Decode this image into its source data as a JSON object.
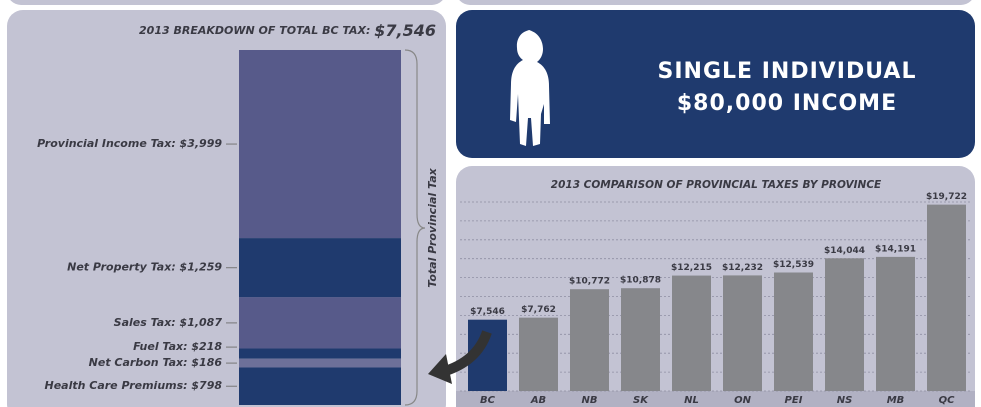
{
  "banner": {
    "line1": "SINGLE INDIVIDUAL",
    "line2": "$80,000 INCOME"
  },
  "chart_data": [
    {
      "type": "stacked_bar",
      "title": "2013 BREAKDOWN OF TOTAL BC TAX:",
      "total_label": "$7,546",
      "bracket_label": "Total Provincial Tax",
      "categories": [
        "Provincial Income Tax: $3,999",
        "Net Property Tax: $1,259",
        "Sales Tax: $1,087",
        "Fuel Tax: $218",
        "Net Carbon Tax: $186",
        "Health Care Premiums: $798"
      ],
      "values": [
        3999,
        1259,
        1087,
        218,
        186,
        798
      ],
      "colors": [
        "#575a8a",
        "#1f3a6e",
        "#575a8a",
        "#1f3a6e",
        "#6d7099",
        "#1f3a6e"
      ]
    },
    {
      "type": "bar",
      "title": "2013 COMPARISON OF PROVINCIAL TAXES BY PROVINCE",
      "categories": [
        "BC",
        "AB",
        "NB",
        "SK",
        "NL",
        "ON",
        "PEI",
        "NS",
        "MB",
        "QC"
      ],
      "values": [
        7546,
        7762,
        10772,
        10878,
        12215,
        12232,
        12539,
        14044,
        14191,
        19722
      ],
      "value_labels": [
        "$7,546",
        "$7,762",
        "$10,772",
        "$10,878",
        "$12,215",
        "$12,232",
        "$12,539",
        "$14,044",
        "$14,191",
        "$19,722"
      ],
      "colors": [
        "#1f3a6e",
        "#86878b",
        "#86878b",
        "#86878b",
        "#86878b",
        "#86878b",
        "#86878b",
        "#86878b",
        "#86878b",
        "#86878b"
      ],
      "ylim": [
        0,
        20000
      ],
      "yticks": [
        0,
        2000,
        4000,
        6000,
        8000,
        10000,
        12000,
        14000,
        16000,
        18000,
        20000
      ],
      "grid": true,
      "show_ytick_labels": false
    }
  ]
}
